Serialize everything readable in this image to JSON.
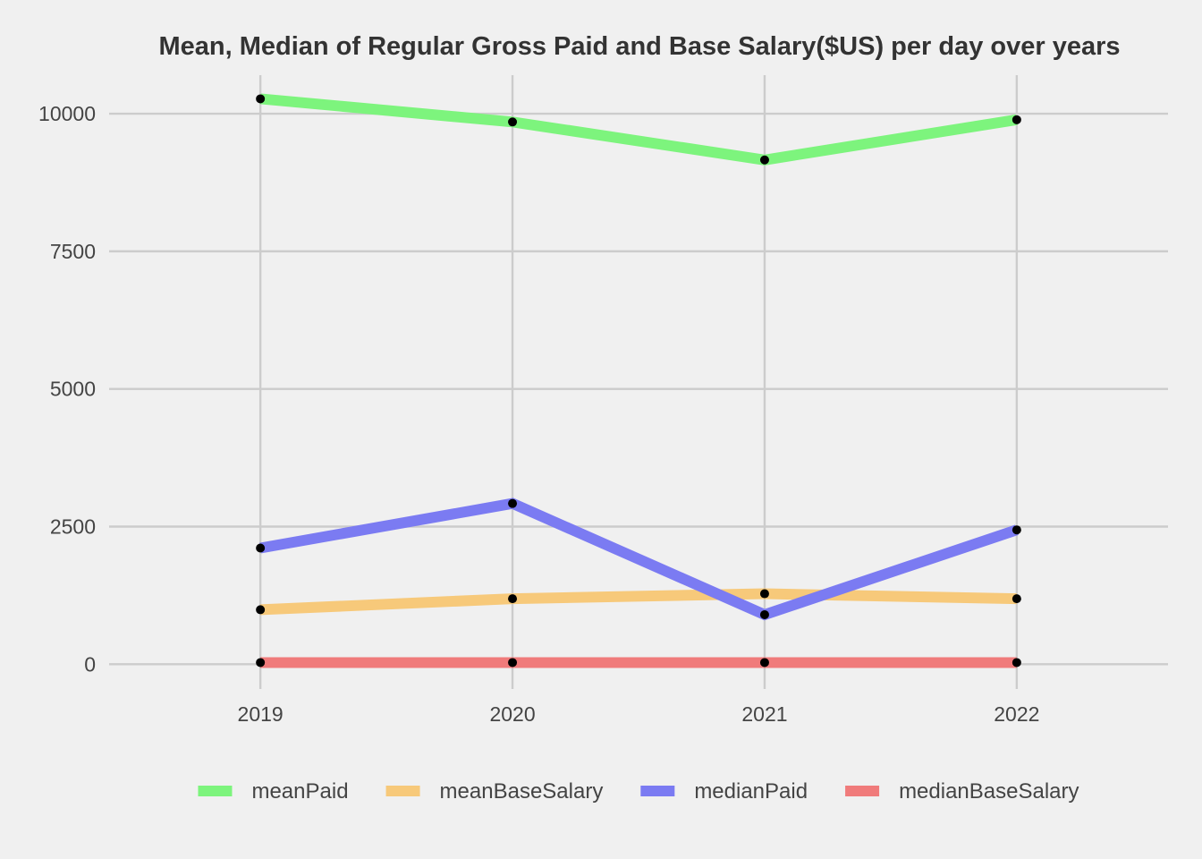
{
  "chart_data": {
    "type": "line",
    "title": "Mean, Median of Regular Gross Paid and Base Salary($US) per day over years",
    "xlabel": "",
    "ylabel": "",
    "x": [
      "2019",
      "2020",
      "2021",
      "2022"
    ],
    "xlim": [
      2018.4,
      2022.6
    ],
    "ylim": [
      -450,
      10700
    ],
    "yticks": [
      0,
      2500,
      5000,
      7500,
      10000
    ],
    "grid": true,
    "legend_position": "bottom",
    "series": [
      {
        "name": "meanPaid",
        "color": "#7df47d",
        "values": [
          10270,
          9850,
          9160,
          9890
        ]
      },
      {
        "name": "meanBaseSalary",
        "color": "#f7c97a",
        "values": [
          990,
          1190,
          1280,
          1190
        ]
      },
      {
        "name": "medianPaid",
        "color": "#7b7bf2",
        "values": [
          2110,
          2920,
          900,
          2440
        ]
      },
      {
        "name": "medianBaseSalary",
        "color": "#f07b7b",
        "values": [
          30,
          30,
          30,
          30
        ]
      }
    ],
    "point_color": "#000000"
  }
}
